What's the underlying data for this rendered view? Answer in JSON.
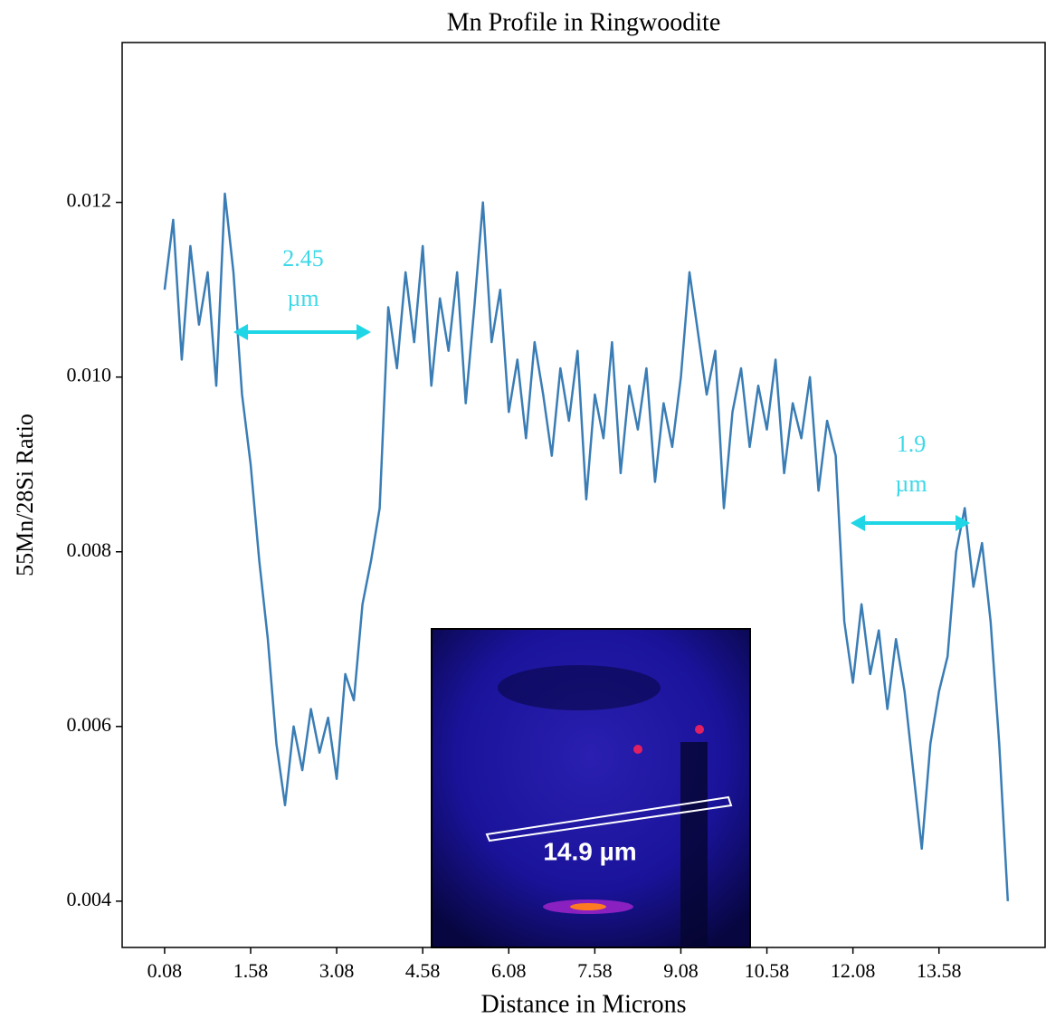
{
  "chart_data": {
    "type": "line",
    "title": "Mn Profile in Ringwoodite",
    "xlabel": "Distance in Microns",
    "ylabel": "55Mn/28Si Ratio",
    "color": "#3a7db5",
    "x": [
      0.08,
      0.23,
      0.38,
      0.53,
      0.68,
      0.83,
      0.98,
      1.13,
      1.28,
      1.43,
      1.58,
      1.73,
      1.88,
      2.03,
      2.18,
      2.33,
      2.48,
      2.63,
      2.78,
      2.93,
      3.08,
      3.23,
      3.38,
      3.53,
      3.68,
      3.83,
      3.98,
      4.13,
      4.28,
      4.43,
      4.58,
      4.73,
      4.88,
      5.03,
      5.18,
      5.33,
      5.48,
      5.63,
      5.78,
      5.93,
      6.08,
      6.23,
      6.38,
      6.53,
      6.68,
      6.83,
      6.98,
      7.13,
      7.28,
      7.43,
      7.58,
      7.73,
      7.88,
      8.03,
      8.18,
      8.33,
      8.48,
      8.63,
      8.78,
      8.93,
      9.08,
      9.23,
      9.38,
      9.53,
      9.68,
      9.83,
      9.98,
      10.13,
      10.28,
      10.43,
      10.58,
      10.73,
      10.88,
      11.03,
      11.18,
      11.33,
      11.48,
      11.63,
      11.78,
      11.93,
      12.08,
      12.23,
      12.38,
      12.53,
      12.68,
      12.83,
      12.98,
      13.13,
      13.28,
      13.43,
      13.58,
      13.73,
      13.88,
      14.03,
      14.18,
      14.33,
      14.48,
      14.63,
      14.78
    ],
    "values": [
      0.011,
      0.0118,
      0.0102,
      0.0115,
      0.0106,
      0.0112,
      0.0099,
      0.0121,
      0.0112,
      0.0098,
      0.009,
      0.0079,
      0.007,
      0.0058,
      0.0051,
      0.006,
      0.0055,
      0.0062,
      0.0057,
      0.0061,
      0.0054,
      0.0066,
      0.0063,
      0.0074,
      0.0079,
      0.0085,
      0.0108,
      0.0101,
      0.0112,
      0.0104,
      0.0115,
      0.0099,
      0.0109,
      0.0103,
      0.0112,
      0.0097,
      0.0108,
      0.012,
      0.0104,
      0.011,
      0.0096,
      0.0102,
      0.0093,
      0.0104,
      0.0098,
      0.0091,
      0.0101,
      0.0095,
      0.0103,
      0.0086,
      0.0098,
      0.0093,
      0.0104,
      0.0089,
      0.0099,
      0.0094,
      0.0101,
      0.0088,
      0.0097,
      0.0092,
      0.01,
      0.0112,
      0.0105,
      0.0098,
      0.0103,
      0.0085,
      0.0096,
      0.0101,
      0.0092,
      0.0099,
      0.0094,
      0.0102,
      0.0089,
      0.0097,
      0.0093,
      0.01,
      0.0087,
      0.0095,
      0.0091,
      0.0072,
      0.0065,
      0.0074,
      0.0066,
      0.0071,
      0.0062,
      0.007,
      0.0064,
      0.0055,
      0.0046,
      0.0058,
      0.0064,
      0.0068,
      0.008,
      0.0085,
      0.0076,
      0.0081,
      0.0072,
      0.0058,
      0.004
    ],
    "xlim": [
      -0.66,
      15.43
    ],
    "ylim": [
      0.00347,
      0.01383
    ],
    "xticks": [
      0.08,
      1.58,
      3.08,
      4.58,
      6.08,
      7.58,
      9.08,
      10.58,
      12.08,
      13.58
    ],
    "yticks": [
      0.004,
      0.006,
      0.008,
      {
        "value": 0.01,
        "label": "0.010"
      },
      0.012
    ],
    "annotations": [
      {
        "lines": [
          "2.45",
          "µm"
        ]
      },
      {
        "lines": [
          "1.9",
          "µm"
        ]
      }
    ],
    "inset_label": "14.9 µm"
  }
}
